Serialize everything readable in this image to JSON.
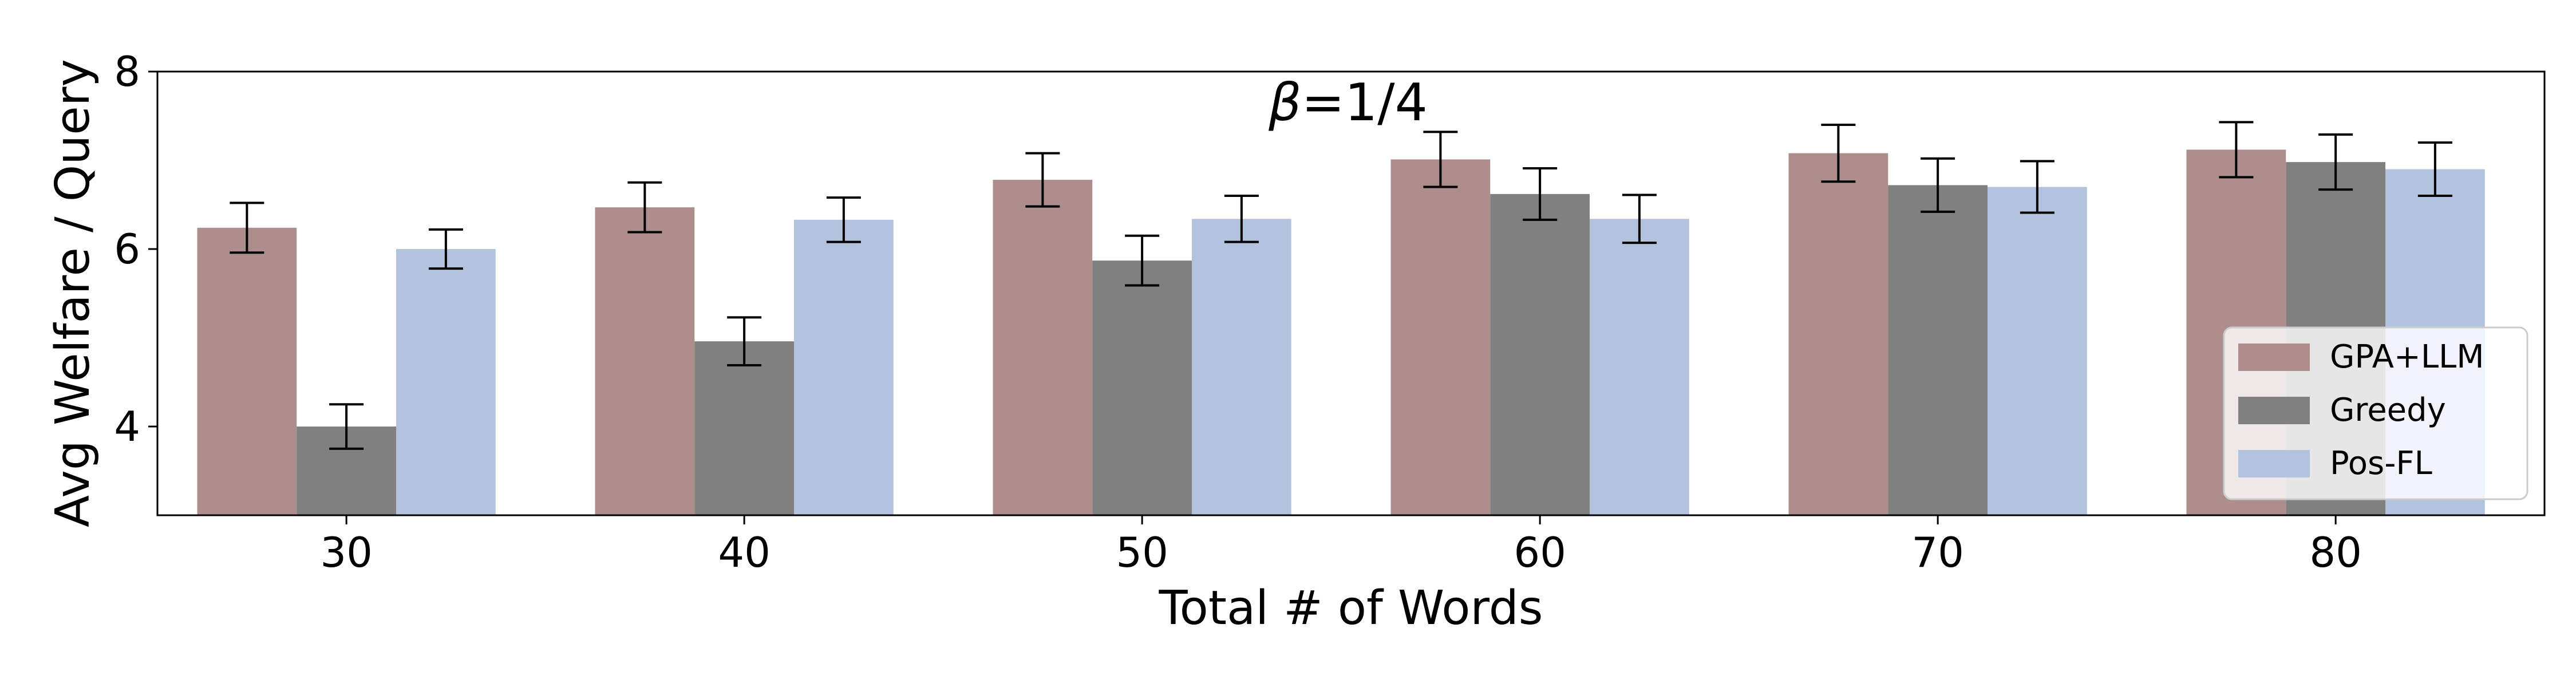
{
  "chart_data": {
    "type": "bar",
    "title_beta": "β",
    "title_rest": "=1/4",
    "xlabel": "Total # of Words",
    "ylabel": "Avg Welfare / Query",
    "categories": [
      "30",
      "40",
      "50",
      "60",
      "70",
      "80"
    ],
    "ylim": [
      3,
      8
    ],
    "yticks": [
      4,
      6,
      8
    ],
    "grid": false,
    "legend_position": "lower-right",
    "series": [
      {
        "name": "GPA+LLM",
        "color": "#ae8e8c",
        "values": [
          6.24,
          6.47,
          6.78,
          7.01,
          7.08,
          7.12
        ],
        "errors": [
          0.28,
          0.28,
          0.3,
          0.31,
          0.32,
          0.31
        ]
      },
      {
        "name": "Greedy",
        "color": "#808080",
        "values": [
          4.0,
          4.96,
          5.87,
          6.62,
          6.72,
          6.98
        ],
        "errors": [
          0.25,
          0.27,
          0.28,
          0.29,
          0.3,
          0.31
        ]
      },
      {
        "name": "Pos-FL",
        "color": "#b3c3de",
        "values": [
          6.0,
          6.33,
          6.34,
          6.34,
          6.7,
          6.9
        ],
        "errors": [
          0.22,
          0.25,
          0.26,
          0.27,
          0.29,
          0.3
        ]
      }
    ]
  }
}
